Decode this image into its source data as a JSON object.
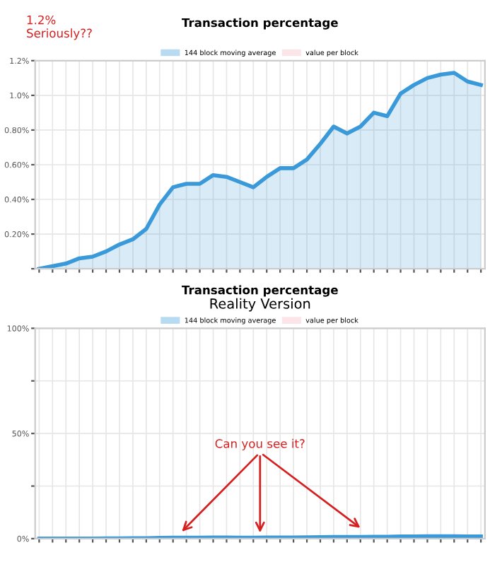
{
  "chart_data": [
    {
      "type": "area",
      "title": "Transaction percentage",
      "categories": [
        null,
        null,
        null,
        null,
        null,
        null,
        null,
        null,
        null,
        null,
        null,
        null,
        null,
        null,
        null,
        null,
        null,
        null,
        null,
        null,
        null,
        null,
        null,
        null,
        null,
        null,
        null,
        null,
        null,
        null,
        null,
        null,
        null,
        null
      ],
      "series": [
        {
          "name": "144 block moving average",
          "color": "#3a9ad9",
          "values": [
            0.0,
            0.015,
            0.03,
            0.06,
            0.07,
            0.1,
            0.14,
            0.17,
            0.23,
            0.37,
            0.47,
            0.49,
            0.49,
            0.54,
            0.53,
            0.5,
            0.47,
            0.53,
            0.58,
            0.58,
            0.63,
            0.72,
            0.82,
            0.78,
            0.82,
            0.9,
            0.88,
            1.01,
            1.06,
            1.1,
            1.12,
            1.13,
            1.08,
            1.06
          ]
        },
        {
          "name": "value per block",
          "color": "#f4b6c2",
          "values": [
            null,
            null,
            null,
            null,
            null,
            null,
            null,
            null,
            null,
            null,
            null,
            null,
            null,
            null,
            null,
            null,
            null,
            null,
            null,
            null,
            null,
            null,
            null,
            null,
            null,
            null,
            null,
            null,
            null,
            null,
            null,
            null,
            null,
            null
          ]
        }
      ],
      "ylim": [
        0,
        1.2
      ],
      "yticks": [
        {
          "value": 0,
          "label": null
        },
        {
          "value": 0.2,
          "label": "0.20%"
        },
        {
          "value": 0.4,
          "label": "0.40%"
        },
        {
          "value": 0.6,
          "label": "0.60%"
        },
        {
          "value": 0.8,
          "label": "0.80%"
        },
        {
          "value": 1.0,
          "label": "1.0%"
        },
        {
          "value": 1.2,
          "label": "1.2%"
        }
      ],
      "grid": true,
      "legend": "top",
      "marker": "none",
      "annotations": [
        "1.2%\nSeriously??"
      ]
    },
    {
      "type": "area",
      "title": "Transaction percentage",
      "subtitle": "Reality Version",
      "categories": [
        null,
        null,
        null,
        null,
        null,
        null,
        null,
        null,
        null,
        null,
        null,
        null,
        null,
        null,
        null,
        null,
        null,
        null,
        null,
        null,
        null,
        null,
        null,
        null,
        null,
        null,
        null,
        null,
        null,
        null,
        null,
        null,
        null,
        null
      ],
      "series": [
        {
          "name": "144 block moving average",
          "color": "#3a9ad9",
          "values": [
            0.0,
            0.015,
            0.03,
            0.06,
            0.07,
            0.1,
            0.14,
            0.17,
            0.23,
            0.37,
            0.47,
            0.49,
            0.49,
            0.54,
            0.53,
            0.5,
            0.47,
            0.53,
            0.58,
            0.58,
            0.63,
            0.72,
            0.82,
            0.78,
            0.82,
            0.9,
            0.88,
            1.01,
            1.06,
            1.1,
            1.12,
            1.13,
            1.08,
            1.06
          ]
        },
        {
          "name": "value per block",
          "color": "#f4b6c2",
          "values": [
            null,
            null,
            null,
            null,
            null,
            null,
            null,
            null,
            null,
            null,
            null,
            null,
            null,
            null,
            null,
            null,
            null,
            null,
            null,
            null,
            null,
            null,
            null,
            null,
            null,
            null,
            null,
            null,
            null,
            null,
            null,
            null,
            null,
            null
          ]
        }
      ],
      "ylim": [
        0,
        100
      ],
      "yticks": [
        {
          "value": 0,
          "label": "0%"
        },
        {
          "value": 25,
          "label": null
        },
        {
          "value": 50,
          "label": "50%"
        },
        {
          "value": 75,
          "label": null
        },
        {
          "value": 100,
          "label": "100%"
        }
      ],
      "grid": true,
      "legend": "top",
      "marker": "none",
      "annotations": [
        "Can you see it?"
      ]
    }
  ]
}
